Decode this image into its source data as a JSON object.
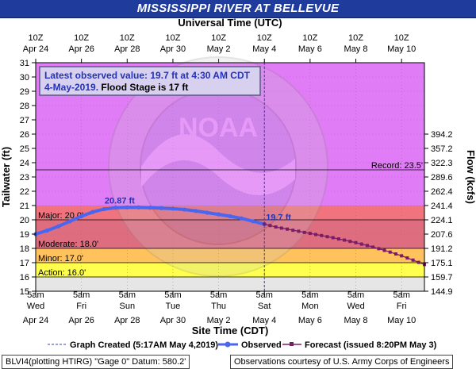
{
  "title": "MISSISSIPPI RIVER AT BELLEVUE",
  "top_axis_title": "Universal Time (UTC)",
  "top_ticks": [
    {
      "line1": "10Z",
      "line2": "Apr 24"
    },
    {
      "line1": "10Z",
      "line2": "Apr 26"
    },
    {
      "line1": "10Z",
      "line2": "Apr 28"
    },
    {
      "line1": "10Z",
      "line2": "Apr 30"
    },
    {
      "line1": "10Z",
      "line2": "May  2"
    },
    {
      "line1": "10Z",
      "line2": "May  4"
    },
    {
      "line1": "10Z",
      "line2": "May  6"
    },
    {
      "line1": "10Z",
      "line2": "May  8"
    },
    {
      "line1": "10Z",
      "line2": "May 10"
    }
  ],
  "bottom_ticks": [
    {
      "line1": "5am",
      "line2": "Wed",
      "line3": "Apr 24"
    },
    {
      "line1": "5am",
      "line2": "Fri",
      "line3": "Apr 26"
    },
    {
      "line1": "5am",
      "line2": "Sun",
      "line3": "Apr 28"
    },
    {
      "line1": "5am",
      "line2": "Tue",
      "line3": "Apr 30"
    },
    {
      "line1": "5am",
      "line2": "Thu",
      "line3": "May 2"
    },
    {
      "line1": "5am",
      "line2": "Sat",
      "line3": "May 4"
    },
    {
      "line1": "5am",
      "line2": "Mon",
      "line3": "May 6"
    },
    {
      "line1": "5am",
      "line2": "Wed",
      "line3": "May 8"
    },
    {
      "line1": "5am",
      "line2": "Fri",
      "line3": "May 10"
    }
  ],
  "bottom_axis_title": "Site Time (CDT)",
  "left_axis_title": "Tailwater (ft)",
  "right_axis_title": "Flow (kcfs)",
  "info_box": {
    "line1": "Latest observed value: 19.7 ft at 4:30 AM CDT",
    "line2_date": "4-May-2019.",
    "line2_flood": " Flood Stage is 17 ft"
  },
  "watermark": "NOAA",
  "legend": {
    "created": "Graph Created (5:17AM May 4,2019)",
    "observed": "Observed",
    "forecast": "Forecast (issued 8:20PM May 3)"
  },
  "footer_left": "BLVI4(plotting HTIRG) \"Gage 0\" Datum: 580.2'",
  "footer_right": "Observations courtesy of U.S. Army Corps of Engineers",
  "colors": {
    "major": "#f0737d",
    "moderate": "#de6d80",
    "minor": "#ffc25c",
    "action": "#ffff4d",
    "above": "#e07cf5",
    "normal": "#e6e6e6",
    "observed": "#4a66f0",
    "forecast": "#7a1c66",
    "title_bar": "#1f3b9b"
  },
  "chart_data": {
    "type": "line",
    "x_unit": "days after Apr 24 5am CDT",
    "xlim": [
      0,
      17
    ],
    "ylim": [
      15,
      31
    ],
    "ylabel": "Tailwater (ft)",
    "y_ticks": [
      15,
      16,
      17,
      18,
      19,
      20,
      21,
      22,
      23,
      24,
      25,
      26,
      27,
      28,
      29,
      30,
      31
    ],
    "right_axis": {
      "label": "Flow (kcfs)",
      "ticks": [
        {
          "stage": 15,
          "label": "144.9"
        },
        {
          "stage": 16,
          "label": "159.7"
        },
        {
          "stage": 17,
          "label": "175.1"
        },
        {
          "stage": 18,
          "label": "191.2"
        },
        {
          "stage": 19,
          "label": "207.6"
        },
        {
          "stage": 20,
          "label": "224.1"
        },
        {
          "stage": 21,
          "label": "241.4"
        },
        {
          "stage": 22,
          "label": "262.4"
        },
        {
          "stage": 23,
          "label": "289.6"
        },
        {
          "stage": 24,
          "label": "322.3"
        },
        {
          "stage": 25,
          "label": "357.2"
        },
        {
          "stage": 26,
          "label": "394.2"
        }
      ]
    },
    "flood_categories": [
      {
        "name": "Action",
        "label": "Action: 16.0'",
        "stage": 16.0
      },
      {
        "name": "Minor",
        "label": "Minor: 17.0'",
        "stage": 17.0
      },
      {
        "name": "Moderate",
        "label": "Moderate: 18.0'",
        "stage": 18.0
      },
      {
        "name": "Major",
        "label": "Major: 20.0'",
        "stage": 20.0
      }
    ],
    "record": {
      "label": "Record: 23.5'",
      "stage": 23.5
    },
    "now_x": 10.0,
    "annotations": [
      {
        "text": "20.87 ft",
        "x": 3.5,
        "y": 20.87
      },
      {
        "text": "19.7 ft",
        "x": 10.0,
        "y": 19.7
      }
    ],
    "series": [
      {
        "name": "Observed",
        "x": [
          0.0,
          0.5,
          1.0,
          1.5,
          2.0,
          2.5,
          3.0,
          3.5,
          4.0,
          4.5,
          5.0,
          5.5,
          6.0,
          6.5,
          7.0,
          7.5,
          8.0,
          8.5,
          9.0,
          9.5,
          10.0
        ],
        "y": [
          19.0,
          19.25,
          19.55,
          19.9,
          20.25,
          20.55,
          20.75,
          20.85,
          20.87,
          20.87,
          20.85,
          20.82,
          20.78,
          20.72,
          20.62,
          20.5,
          20.38,
          20.25,
          20.1,
          19.9,
          19.7
        ]
      },
      {
        "name": "Forecast",
        "x": [
          10.0,
          10.25,
          10.5,
          10.75,
          11.0,
          11.25,
          11.5,
          11.75,
          12.0,
          12.25,
          12.5,
          12.75,
          13.0,
          13.25,
          13.5,
          13.75,
          14.0,
          14.25,
          14.5,
          14.75,
          15.0,
          15.25,
          15.5,
          15.75,
          16.0,
          16.25,
          16.5,
          16.75,
          17.0
        ],
        "y": [
          19.7,
          19.6,
          19.5,
          19.42,
          19.35,
          19.27,
          19.2,
          19.12,
          19.05,
          18.97,
          18.9,
          18.82,
          18.75,
          18.66,
          18.58,
          18.49,
          18.4,
          18.3,
          18.2,
          18.09,
          17.98,
          17.86,
          17.74,
          17.61,
          17.48,
          17.33,
          17.18,
          17.02,
          16.87
        ]
      }
    ]
  }
}
